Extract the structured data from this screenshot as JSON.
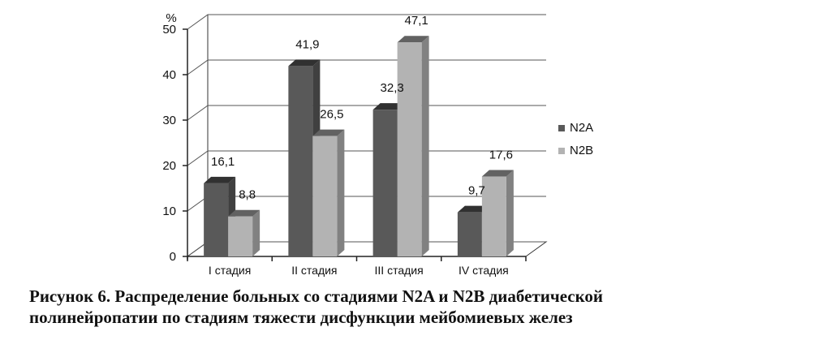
{
  "chart_data": {
    "type": "bar",
    "y_unit": "%",
    "categories": [
      "I стадия",
      "II стадия",
      "III стадия",
      "IV стадия"
    ],
    "series": [
      {
        "name": "N2A",
        "color": "#595959",
        "values": [
          16.1,
          41.9,
          32.3,
          9.7
        ],
        "labels": [
          "16,1",
          "41,9",
          "32,3",
          "9,7"
        ]
      },
      {
        "name": "N2B",
        "color": "#b3b3b3",
        "values": [
          8.8,
          26.5,
          47.1,
          17.6
        ],
        "labels": [
          "8,8",
          "26,5",
          "47,1",
          "17,6"
        ]
      }
    ],
    "ylim": [
      0,
      50
    ],
    "yticks": [
      0,
      10,
      20,
      30,
      40,
      50
    ],
    "grid": true,
    "legend_position": "right",
    "bar_style": "3d"
  },
  "caption": {
    "line1": "Рисунок 6. Распределение больных со стадиями N2A и N2B диабетической",
    "line2": "полинейропатии по стадиям тяжести дисфункции мейбомиевых желез"
  }
}
